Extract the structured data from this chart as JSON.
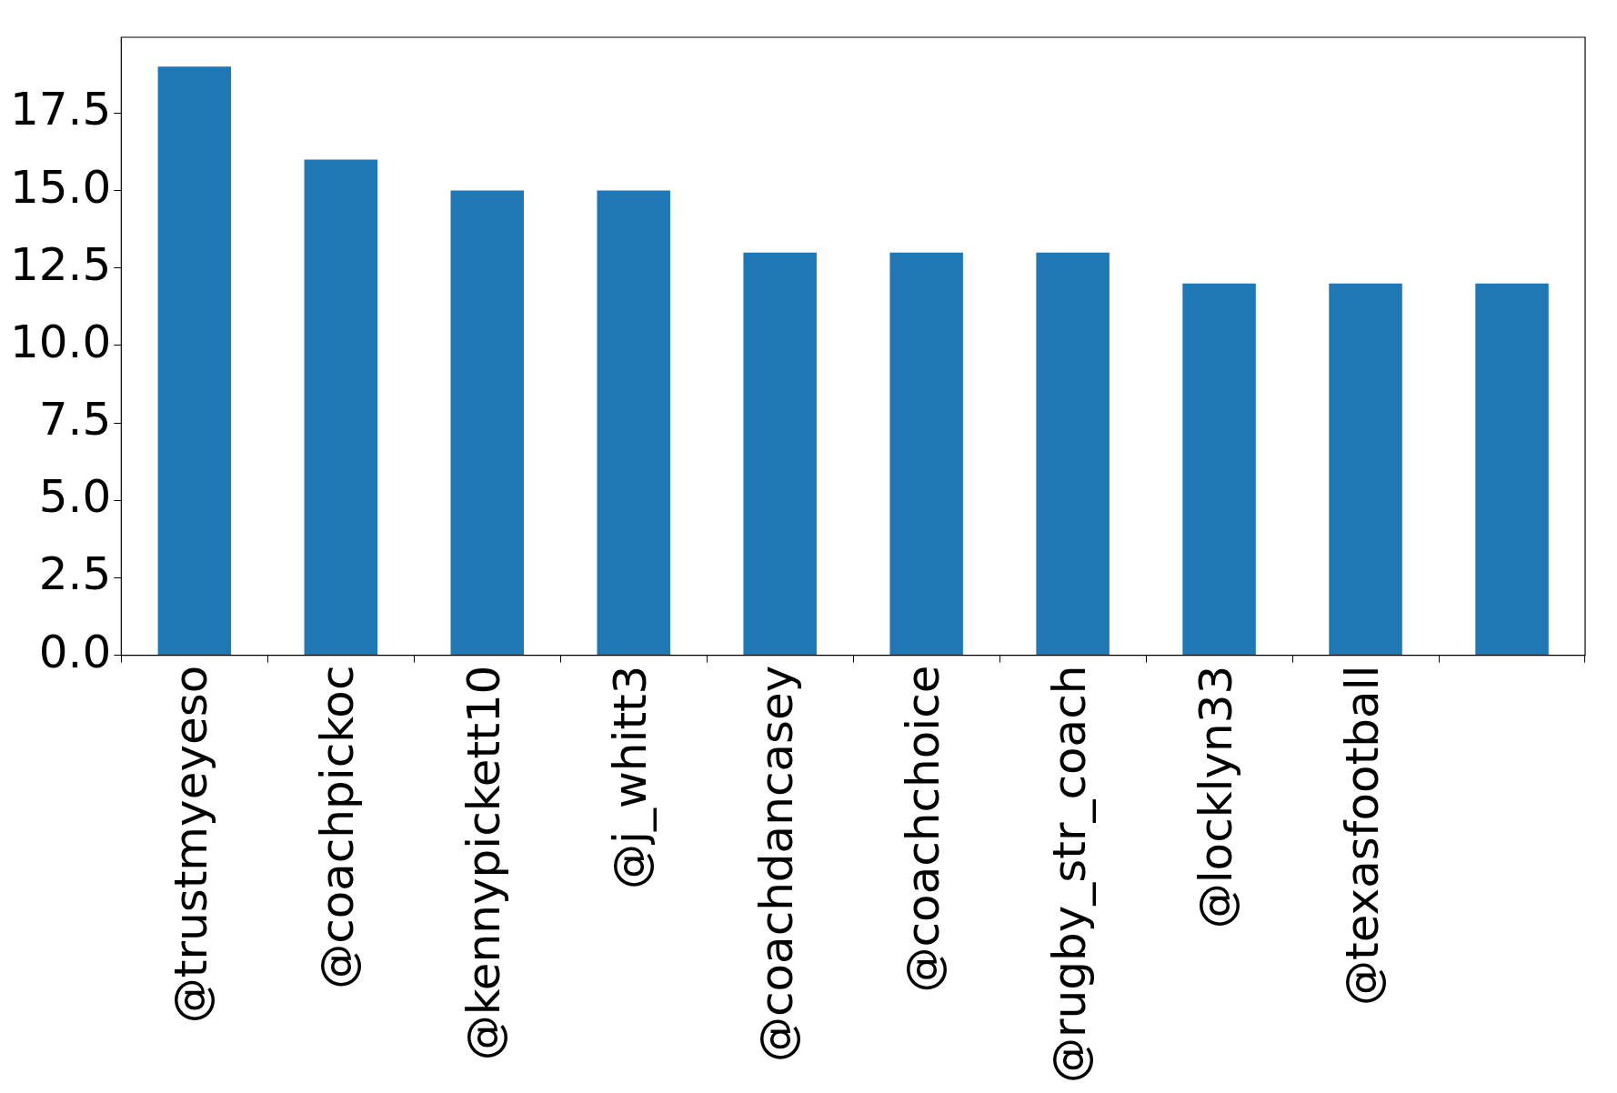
{
  "chart_data": {
    "type": "bar",
    "categories": [
      "@trustmyeyeso",
      "@coachpickoc",
      "@kennypickett10",
      "@j_whitt3",
      "@coachdancasey",
      "@coachchoice",
      "@rugby_str_coach",
      "@locklyn33",
      "@texasfootball",
      null
    ],
    "values": [
      19,
      16,
      15,
      15,
      13,
      13,
      13,
      12,
      12,
      12
    ],
    "color": "#1f77b4",
    "ylim": [
      0,
      19.95
    ],
    "yticks": [
      {
        "value": 0,
        "label": "0.0"
      },
      {
        "value": 2.5,
        "label": "2.5"
      },
      {
        "value": 5,
        "label": "5.0"
      },
      {
        "value": 7.5,
        "label": "7.5"
      },
      {
        "value": 10,
        "label": "10.0"
      },
      {
        "value": 12.5,
        "label": "12.5"
      },
      {
        "value": 15,
        "label": "15.0"
      },
      {
        "value": 17.5,
        "label": "17.5"
      }
    ],
    "grid": false
  }
}
